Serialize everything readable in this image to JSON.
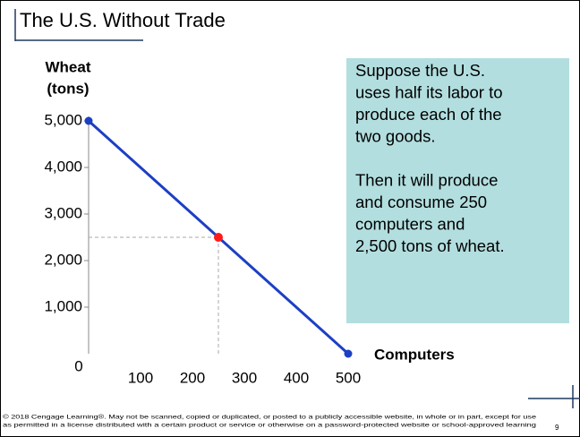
{
  "title": "The U.S. Without Trade",
  "chart_data": {
    "type": "line",
    "ylabel": [
      "Wheat",
      "(tons)"
    ],
    "xlabel": "Computers",
    "x": [
      0,
      500
    ],
    "values": [
      5000,
      0
    ],
    "color": "#1c3fc4",
    "highlight": {
      "x": 250,
      "y": 2500,
      "color": "#ff1a1a"
    },
    "xlim": [
      0,
      500
    ],
    "ylim": [
      0,
      5000
    ],
    "xticks": [
      0,
      100,
      200,
      300,
      400,
      500
    ],
    "yticks": [
      {
        "value": 1000,
        "label": "1,000"
      },
      {
        "value": 2000,
        "label": "2,000"
      },
      {
        "value": 3000,
        "label": "3,000"
      },
      {
        "value": 4000,
        "label": "4,000"
      },
      {
        "value": 5000,
        "label": "5,000"
      }
    ]
  },
  "callout": [
    "Suppose the U.S.",
    "uses half its labor to",
    "produce each of the",
    "two goods.",
    "",
    "Then it will produce",
    "and consume 250",
    "computers and",
    "2,500 tons of wheat."
  ],
  "footer": [
    "© 2018 Cengage Learning®. May not be scanned, copied or duplicated, or posted to a publicly accessible website, in whole or in part, except for use",
    "as permitted in a license distributed with a certain product or service or otherwise on a password-protected website or school-approved learning"
  ],
  "page_number": 9
}
